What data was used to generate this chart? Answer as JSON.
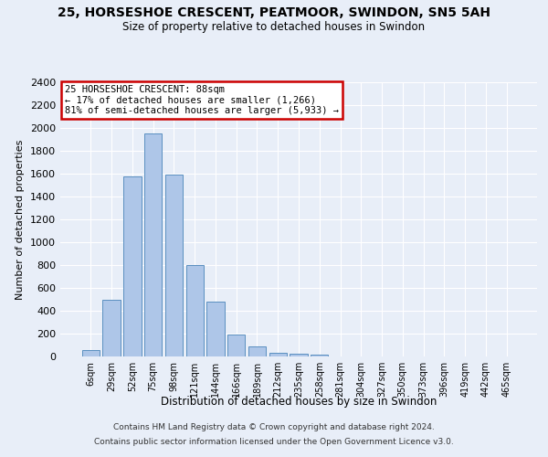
{
  "title": "25, HORSESHOE CRESCENT, PEATMOOR, SWINDON, SN5 5AH",
  "subtitle": "Size of property relative to detached houses in Swindon",
  "xlabel": "Distribution of detached houses by size in Swindon",
  "ylabel": "Number of detached properties",
  "footer_line1": "Contains HM Land Registry data © Crown copyright and database right 2024.",
  "footer_line2": "Contains public sector information licensed under the Open Government Licence v3.0.",
  "categories": [
    "6sqm",
    "29sqm",
    "52sqm",
    "75sqm",
    "98sqm",
    "121sqm",
    "144sqm",
    "166sqm",
    "189sqm",
    "212sqm",
    "235sqm",
    "258sqm",
    "281sqm",
    "304sqm",
    "327sqm",
    "350sqm",
    "373sqm",
    "396sqm",
    "419sqm",
    "442sqm",
    "465sqm"
  ],
  "values": [
    60,
    500,
    1580,
    1950,
    1590,
    800,
    480,
    195,
    90,
    35,
    28,
    20,
    0,
    0,
    0,
    0,
    0,
    0,
    0,
    0,
    0
  ],
  "bar_color": "#aec6e8",
  "bar_edge_color": "#5a8fc0",
  "annotation_text": "25 HORSESHOE CRESCENT: 88sqm\n← 17% of detached houses are smaller (1,266)\n81% of semi-detached houses are larger (5,933) →",
  "annotation_box_color": "#ffffff",
  "annotation_box_edge_color": "#cc0000",
  "bg_color": "#e8eef8",
  "grid_color": "#ffffff",
  "ylim": [
    0,
    2400
  ],
  "yticks": [
    0,
    200,
    400,
    600,
    800,
    1000,
    1200,
    1400,
    1600,
    1800,
    2000,
    2200,
    2400
  ]
}
